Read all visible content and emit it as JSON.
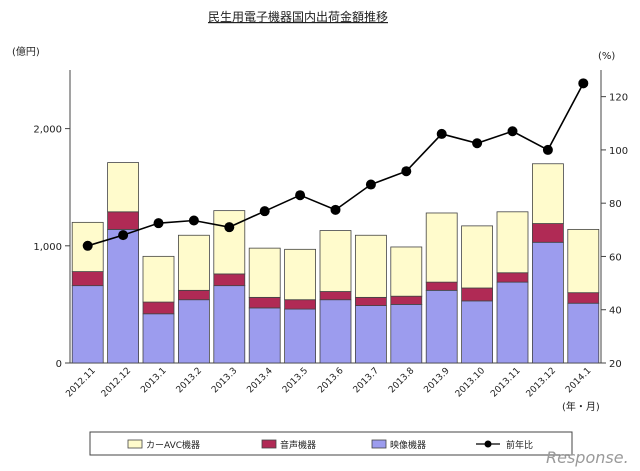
{
  "chart_data": {
    "type": "bar",
    "title": "民生用電子機器国内出荷金額推移",
    "ylabel_left": "(億円)",
    "ylabel_right": "(%)",
    "xlabel": "(年・月)",
    "categories": [
      "2012.11",
      "2012.12",
      "2013.1",
      "2013.2",
      "2013.3",
      "2013.4",
      "2013.5",
      "2013.6",
      "2013.7",
      "2013.8",
      "2013.9",
      "2013.10",
      "2013.11",
      "2013.12",
      "2014.1"
    ],
    "stacked": true,
    "ylim_left": [
      0,
      2500
    ],
    "yticks_left": [
      0,
      1000,
      2000
    ],
    "ytick_labels_left": [
      "0",
      "1,000",
      "2,000"
    ],
    "ylim_right": [
      20,
      130
    ],
    "yticks_right": [
      20,
      40,
      60,
      80,
      100,
      120
    ],
    "series": [
      {
        "name": "映像機器",
        "kind": "bar",
        "color": "#9c9cee",
        "values": [
          660,
          1140,
          420,
          540,
          660,
          470,
          460,
          540,
          490,
          500,
          620,
          530,
          690,
          1030,
          510
        ]
      },
      {
        "name": "音声機器",
        "kind": "bar",
        "color": "#b02a55",
        "values": [
          120,
          150,
          100,
          80,
          100,
          90,
          80,
          70,
          70,
          70,
          70,
          110,
          80,
          160,
          90
        ]
      },
      {
        "name": "カーAVC機器",
        "kind": "bar",
        "color": "#fffbcc",
        "values": [
          420,
          420,
          390,
          470,
          540,
          420,
          430,
          520,
          530,
          420,
          590,
          530,
          520,
          510,
          540
        ]
      },
      {
        "name": "前年比",
        "kind": "line",
        "axis": "right",
        "color": "#000000",
        "values": [
          64,
          68,
          72.5,
          73.5,
          71,
          77,
          83,
          77.5,
          87,
          92,
          106,
          102.5,
          107,
          100,
          125
        ]
      }
    ],
    "legend_position": "bottom",
    "grid": false
  },
  "watermark": "Response."
}
